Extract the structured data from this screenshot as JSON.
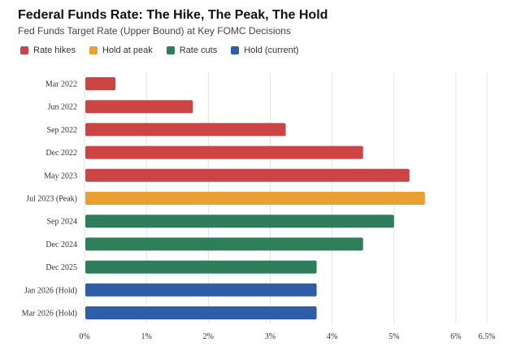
{
  "chart_data": {
    "type": "bar",
    "orientation": "horizontal",
    "title": "Federal Funds Rate: The Hike, The Peak, The Hold",
    "subtitle": "Fed Funds Target Rate (Upper Bound) at Key FOMC Decisions",
    "xlabel": "",
    "ylabel": "",
    "xlim": [
      0,
      6.5
    ],
    "x_ticks": [
      0,
      1,
      2,
      3,
      4,
      5,
      6,
      6.5
    ],
    "x_tick_labels": [
      "0%",
      "1%",
      "2%",
      "3%",
      "4%",
      "5%",
      "6%",
      "6.5%"
    ],
    "grid": true,
    "legend_position": "top-left",
    "legend": [
      {
        "label": "Rate hikes",
        "color": "#cc4444"
      },
      {
        "label": "Hold at peak",
        "color": "#e8a030"
      },
      {
        "label": "Rate cuts",
        "color": "#2e7d5b"
      },
      {
        "label": "Hold (current)",
        "color": "#2f5da8"
      }
    ],
    "bars": [
      {
        "label": "Mar 2022",
        "value": 0.5,
        "group": 0
      },
      {
        "label": "Jun 2022",
        "value": 1.75,
        "group": 0
      },
      {
        "label": "Sep 2022",
        "value": 3.25,
        "group": 0
      },
      {
        "label": "Dec 2022",
        "value": 4.5,
        "group": 0
      },
      {
        "label": "May 2023",
        "value": 5.25,
        "group": 0
      },
      {
        "label": "Jul 2023 (Peak)",
        "value": 5.5,
        "group": 1
      },
      {
        "label": "Sep 2024",
        "value": 5.0,
        "group": 2
      },
      {
        "label": "Dec 2024",
        "value": 4.5,
        "group": 2
      },
      {
        "label": "Dec 2025",
        "value": 3.75,
        "group": 2
      },
      {
        "label": "Jan 2026 (Hold)",
        "value": 3.75,
        "group": 3
      },
      {
        "label": "Mar 2026 (Hold)",
        "value": 3.75,
        "group": 3
      }
    ]
  }
}
